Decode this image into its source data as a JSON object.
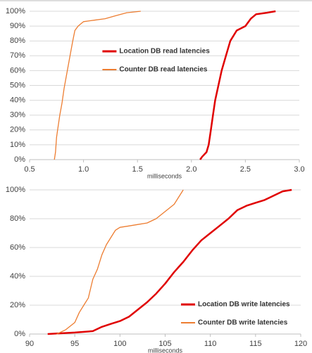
{
  "chart_data": [
    {
      "type": "line",
      "xlabel": "milliseconds",
      "xlim": [
        0.5,
        3.0
      ],
      "xticks": [
        0.5,
        {
          "value": 1,
          "label": "1.0"
        },
        1.5,
        {
          "value": 2,
          "label": "2.0"
        },
        2.5,
        {
          "value": 3,
          "label": "3.0"
        }
      ],
      "ylim": [
        0,
        100
      ],
      "yticks": [
        {
          "value": 0,
          "label": "0%"
        },
        {
          "value": 10,
          "label": "10%"
        },
        {
          "value": 20,
          "label": "20%"
        },
        {
          "value": 30,
          "label": "30%"
        },
        {
          "value": 40,
          "label": "40%"
        },
        {
          "value": 50,
          "label": "50%"
        },
        {
          "value": 60,
          "label": "60%"
        },
        {
          "value": 70,
          "label": "70%"
        },
        {
          "value": 80,
          "label": "80%"
        },
        {
          "value": 90,
          "label": "90%"
        },
        {
          "value": 100,
          "label": "100%"
        }
      ],
      "grid": true,
      "legend": "center",
      "series": [
        {
          "name": "Location DB read latencies",
          "color": "#e00000",
          "x": [
            2.08,
            2.1,
            2.14,
            2.16,
            2.18,
            2.2,
            2.22,
            2.25,
            2.28,
            2.32,
            2.36,
            2.42,
            2.5,
            2.55,
            2.6,
            2.7,
            2.78
          ],
          "values": [
            0,
            2,
            5,
            10,
            20,
            30,
            40,
            50,
            60,
            70,
            80,
            87,
            90,
            95,
            98,
            99,
            100
          ]
        },
        {
          "name": "Counter DB read latencies",
          "color": "#ed7d31",
          "x": [
            0.73,
            0.74,
            0.75,
            0.76,
            0.78,
            0.8,
            0.82,
            0.85,
            0.88,
            0.9,
            0.92,
            0.95,
            1.0,
            1.1,
            1.2,
            1.3,
            1.4,
            1.53
          ],
          "values": [
            0,
            5,
            15,
            20,
            30,
            38,
            48,
            60,
            72,
            80,
            87,
            90,
            93,
            94,
            95,
            97,
            99,
            100
          ]
        }
      ]
    },
    {
      "type": "line",
      "xlabel": "milliseconds",
      "xlim": [
        90,
        120
      ],
      "xticks": [
        90,
        95,
        100,
        105,
        110,
        115,
        120
      ],
      "ylim": [
        0,
        100
      ],
      "yticks": [
        {
          "value": 0,
          "label": "0%"
        },
        {
          "value": 20,
          "label": "20%"
        },
        {
          "value": 40,
          "label": "40%"
        },
        {
          "value": 60,
          "label": "60%"
        },
        {
          "value": 80,
          "label": "80%"
        },
        {
          "value": 100,
          "label": "100%"
        }
      ],
      "grid": true,
      "legend": "lower right",
      "series": [
        {
          "name": "Location DB write latencies",
          "color": "#e00000",
          "x": [
            92,
            95,
            97,
            98,
            99,
            100,
            101,
            102,
            103,
            104,
            105,
            106,
            107,
            108,
            109,
            110,
            111,
            112,
            113,
            114,
            115,
            116,
            117,
            118,
            119
          ],
          "values": [
            0,
            1,
            2,
            5,
            7,
            9,
            12,
            17,
            22,
            28,
            35,
            43,
            50,
            58,
            65,
            70,
            75,
            80,
            86,
            89,
            91,
            93,
            96,
            99,
            100
          ]
        },
        {
          "name": "Counter DB write latencies",
          "color": "#ed7d31",
          "x": [
            93,
            94,
            95,
            95.5,
            96,
            96.5,
            97,
            97.5,
            98,
            98.5,
            99,
            99.5,
            100,
            101,
            102,
            103,
            104,
            105,
            106,
            107
          ],
          "values": [
            0,
            3,
            8,
            15,
            20,
            25,
            38,
            45,
            55,
            62,
            67,
            72,
            74,
            75,
            76,
            77,
            80,
            85,
            90,
            100
          ]
        }
      ]
    }
  ]
}
